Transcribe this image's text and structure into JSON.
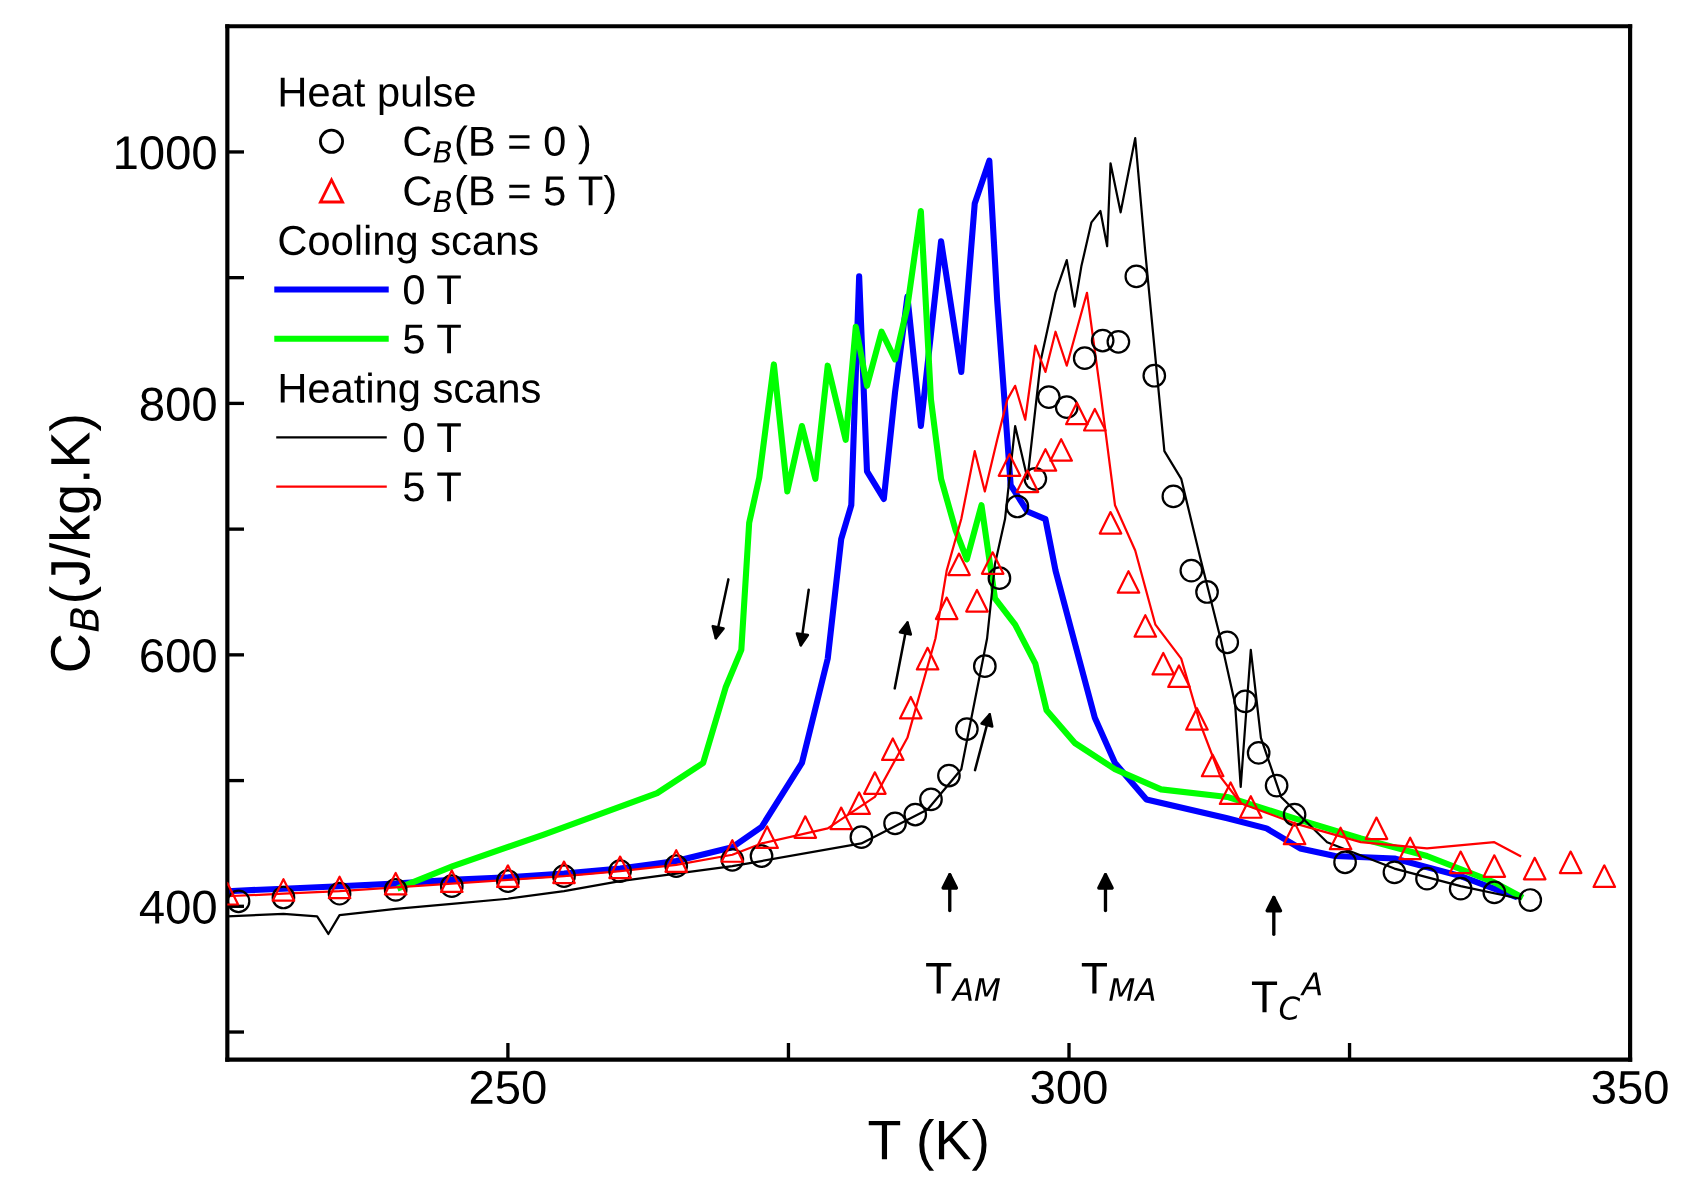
{
  "chart_data": {
    "type": "line",
    "xlabel": "T (K)",
    "ylabel": "C$_{B}$(J/kg.K)",
    "xlim": [
      225,
      350
    ],
    "ylim": [
      278,
      1100
    ],
    "xticks": [
      250,
      {
        "value": 275,
        "label": null
      },
      300,
      {
        "value": 325,
        "label": null
      },
      350
    ],
    "yticks": [
      {
        "value": 300,
        "label": null
      },
      400,
      {
        "value": 500,
        "label": null
      },
      600,
      {
        "value": 700,
        "label": null
      },
      800,
      {
        "value": 900,
        "label": null
      },
      1000
    ],
    "grid": false,
    "legend": "top left",
    "annotations": [
      "Heat pulse",
      "Cooling scans",
      "Heating scans",
      "T$_{AM}$",
      "T$_{MA}$",
      "T$_{C}$$^{A}$"
    ],
    "series": [
      {
        "name": "C$_{B}$(B = 0 )",
        "type": "scatter",
        "marker": "circle",
        "color": "#000000",
        "x": [
          226,
          230,
          235,
          240,
          245,
          250,
          255,
          260,
          265,
          270,
          272.6,
          281.5,
          284.5,
          286.3,
          287.7,
          289.3,
          290.9,
          292.5,
          293.8,
          295.4,
          297,
          298.2,
          299.8,
          301.4,
          303,
          304.4,
          306,
          307.6,
          309.3,
          310.9,
          312.3,
          314.1,
          315.7,
          316.9,
          318.5,
          320.1,
          324.6,
          329,
          331.9,
          334.9,
          337.9,
          341.1
        ],
        "values": [
          404,
          407,
          410,
          413,
          416,
          420,
          424,
          428,
          432,
          437,
          440,
          455,
          466,
          473,
          485,
          504,
          541,
          591,
          661,
          718,
          740,
          805,
          797,
          836,
          850,
          849,
          901,
          822,
          726,
          667,
          650,
          610,
          563,
          522,
          496,
          473,
          435,
          427,
          422,
          414,
          411,
          405
        ]
      },
      {
        "name": "C$_{B}$(B = 5 T)",
        "type": "scatter",
        "marker": "triangle",
        "color": "#ff0000",
        "x": [
          225,
          230,
          235,
          240,
          245,
          250,
          255,
          260,
          265,
          270,
          273.1,
          276.5,
          279.7,
          281.3,
          282.7,
          284.3,
          285.9,
          287.4,
          289.1,
          290.2,
          291.8,
          293.2,
          294.7,
          296.3,
          297.9,
          299.3,
          300.7,
          302.3,
          303.7,
          305.3,
          306.8,
          308.4,
          309.8,
          311.4,
          312.8,
          314.4,
          316.2,
          320.1,
          324.2,
          327.4,
          330.4,
          334.9,
          337.9,
          341.5,
          344.7,
          347.7
        ],
        "values": [
          410,
          413,
          415,
          418,
          420,
          424,
          427,
          431,
          436,
          444,
          455,
          463,
          470,
          482,
          498,
          525,
          558,
          597,
          637,
          672,
          643,
          673,
          751,
          738,
          755,
          763,
          792,
          787,
          705,
          658,
          623,
          593,
          583,
          549,
          512,
          490,
          479,
          458,
          454,
          462,
          446,
          435,
          432,
          430,
          435,
          424
        ]
      },
      {
        "name": "0 T",
        "color": "#0000ff",
        "x": [
          225,
          230,
          235,
          240,
          245,
          250,
          255,
          260,
          265,
          270,
          272.6,
          276.2,
          278.5,
          279.7,
          280.6,
          281.3,
          282,
          283.5,
          284.5,
          285.6,
          286.8,
          288.6,
          290.4,
          291.6,
          292.9,
          293.6,
          294.8,
          296.3,
          297.9,
          298.8,
          300.2,
          302.3,
          304.1,
          306.9,
          314.1,
          317.6,
          320.6,
          323.7,
          329,
          334.9,
          339.7
        ],
        "values": [
          412,
          414,
          416,
          418,
          421,
          423,
          426,
          430,
          436,
          447,
          463,
          514,
          597,
          692,
          719,
          901,
          746,
          724,
          809,
          885,
          782,
          929,
          825,
          959,
          993,
          882,
          735,
          714,
          708,
          667,
          620,
          550,
          514,
          485,
          470,
          462,
          446,
          440,
          438,
          424,
          408
        ]
      },
      {
        "name": "5 T",
        "color": "#00ff00",
        "x": [
          240.4,
          245.1,
          253.2,
          263.3,
          267.4,
          269.4,
          270.8,
          271.5,
          272.4,
          273.7,
          274.9,
          276.2,
          277.4,
          278.5,
          280.1,
          281,
          282,
          283.3,
          284.5,
          285.6,
          286.8,
          287.7,
          288.6,
          289.9,
          290.9,
          292.2,
          293.4,
          295.2,
          297,
          298,
          300.5,
          304.1,
          308.2,
          314.1,
          320.1,
          326,
          331.9,
          337.9,
          340.2
        ],
        "values": [
          415,
          432,
          457,
          490,
          514,
          574,
          604,
          705,
          741,
          831,
          730,
          782,
          740,
          830,
          771,
          861,
          814,
          857,
          835,
          877,
          953,
          803,
          740,
          699,
          676,
          719,
          645,
          624,
          593,
          556,
          530,
          509,
          493,
          487,
          470,
          454,
          440,
          419,
          408
        ]
      },
      {
        "name": "0 T",
        "color": "#000000",
        "x": [
          225,
          230,
          233,
          234,
          235,
          240,
          245,
          250,
          255,
          260,
          265,
          270,
          272.6,
          281.5,
          287.4,
          290.4,
          292.7,
          293.4,
          294.3,
          295.2,
          296.3,
          297.5,
          298.8,
          299.8,
          300.5,
          301.1,
          302,
          302.8,
          303.4,
          303.7,
          304.6,
          305.9,
          306.8,
          308.5,
          310,
          311.7,
          313.5,
          314.8,
          315.3,
          316.2,
          317.1,
          318.9,
          323,
          329,
          334.9,
          340.2
        ],
        "values": [
          392,
          394,
          392,
          378,
          393,
          398,
          402,
          406,
          412,
          420,
          426,
          432,
          436,
          450,
          477,
          509,
          613,
          672,
          708,
          782,
          740,
          835,
          888,
          914,
          877,
          909,
          944,
          953,
          925,
          991,
          952,
          1011,
          920,
          762,
          740,
          677,
          613,
          561,
          495,
          604,
          534,
          487,
          451,
          430,
          416,
          406
        ]
      },
      {
        "name": "5 T",
        "color": "#ff0000",
        "x": [
          225,
          230,
          235,
          240,
          245,
          250,
          255,
          260,
          265,
          270,
          272.6,
          278.5,
          282.7,
          285.6,
          288.1,
          289.1,
          290.4,
          291.6,
          292.5,
          293.6,
          294.5,
          295.2,
          296.1,
          297,
          297.9,
          298.8,
          299.8,
          301.6,
          302.8,
          304.1,
          305.9,
          307.7,
          310,
          311.7,
          313.5,
          315.3,
          320.1,
          326,
          331.9,
          337.9,
          340.2
        ],
        "values": [
          408,
          410,
          412,
          415,
          418,
          421,
          424,
          428,
          433,
          441,
          450,
          462,
          487,
          534,
          613,
          667,
          708,
          762,
          730,
          771,
          803,
          814,
          787,
          846,
          825,
          857,
          830,
          888,
          809,
          719,
          683,
          624,
          597,
          545,
          503,
          482,
          466,
          451,
          446,
          451,
          440
        ]
      }
    ]
  }
}
